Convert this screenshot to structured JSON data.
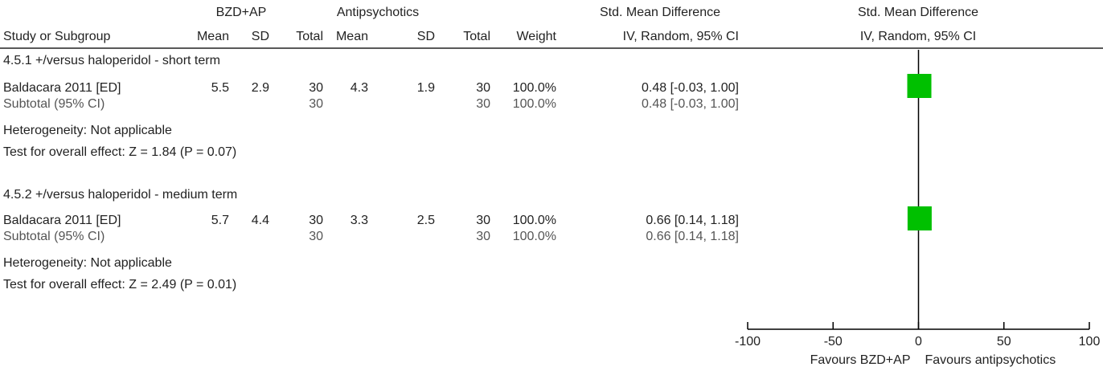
{
  "headers": {
    "group1": "BZD+AP",
    "group2": "Antipsychotics",
    "effect_title": "Std. Mean Difference",
    "effect_method": "IV, Random, 95% CI",
    "plot_title": "Std. Mean Difference",
    "plot_method": "IV, Random, 95% CI",
    "study": "Study or Subgroup",
    "mean": "Mean",
    "sd": "SD",
    "total": "Total",
    "weight": "Weight"
  },
  "subgroups": [
    {
      "title": "4.5.1 +/versus haloperidol - short term",
      "study": {
        "name": "Baldacara 2011 [ED]",
        "mean1": "5.5",
        "sd1": "2.9",
        "total1": "30",
        "mean2": "4.3",
        "sd2": "1.9",
        "total2": "30",
        "weight": "100.0%",
        "ci": "0.48 [-0.03, 1.00]"
      },
      "subtotal": {
        "label": "Subtotal (95% CI)",
        "total1": "30",
        "total2": "30",
        "weight": "100.0%",
        "ci": "0.48 [-0.03, 1.00]"
      },
      "heterogeneity": "Heterogeneity: Not applicable",
      "overall": "Test for overall effect: Z = 1.84 (P = 0.07)"
    },
    {
      "title": "4.5.2 +/versus haloperidol - medium term",
      "study": {
        "name": "Baldacara 2011 [ED]",
        "mean1": "5.7",
        "sd1": "4.4",
        "total1": "30",
        "mean2": "3.3",
        "sd2": "2.5",
        "total2": "30",
        "weight": "100.0%",
        "ci": "0.66 [0.14, 1.18]"
      },
      "subtotal": {
        "label": "Subtotal (95% CI)",
        "total1": "30",
        "total2": "30",
        "weight": "100.0%",
        "ci": "0.66 [0.14, 1.18]"
      },
      "heterogeneity": "Heterogeneity: Not applicable",
      "overall": "Test for overall effect: Z = 2.49 (P = 0.01)"
    }
  ],
  "chart_data": {
    "type": "forest",
    "xlim": [
      -100,
      100
    ],
    "xticks": [
      -100,
      -50,
      0,
      50,
      100
    ],
    "xticklabels": [
      "-100",
      "-50",
      "0",
      "50",
      "100"
    ],
    "favours_left": "Favours BZD+AP",
    "favours_right": "Favours antipsychotics",
    "points": [
      {
        "subgroup": "4.5.1",
        "estimate": 0.48,
        "lower": -0.03,
        "upper": 1.0,
        "weight": 100.0
      },
      {
        "subgroup": "4.5.2",
        "estimate": 0.66,
        "lower": 0.14,
        "upper": 1.18,
        "weight": 100.0
      }
    ],
    "marker_color": "#00c000",
    "axis_color": "#000000"
  }
}
